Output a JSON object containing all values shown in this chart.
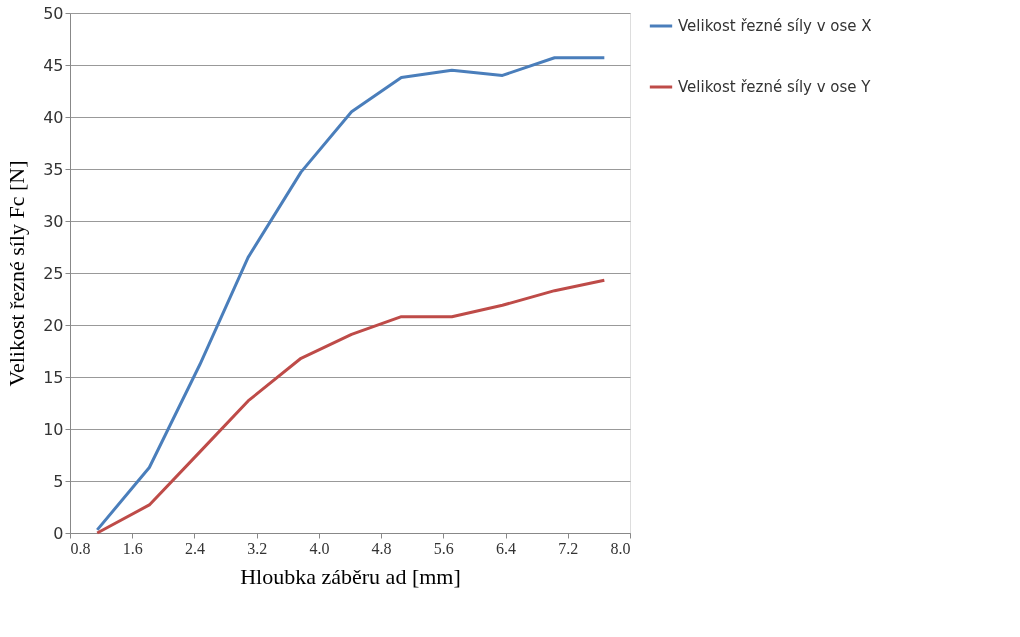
{
  "chart_data": {
    "type": "line",
    "xlabel": "Hloubka záběru ad [mm]",
    "ylabel": "Velikost řezné síly Fc [N]",
    "x": [
      1.15,
      1.82,
      2.47,
      3.09,
      3.77,
      4.42,
      5.06,
      5.71,
      6.36,
      7.03,
      7.67
    ],
    "series": [
      {
        "name": "Velikost řezné síly v ose X",
        "color": "#4a7ebb",
        "values": [
          0.3,
          6.3,
          16.2,
          26.5,
          34.7,
          40.5,
          43.8,
          44.5,
          44.0,
          45.7,
          45.7
        ]
      },
      {
        "name": "Velikost řezné síly v ose Y",
        "color": "#be4b48",
        "values": [
          0,
          2.7,
          7.8,
          12.7,
          16.8,
          19.1,
          20.8,
          20.8,
          21.9,
          23.3,
          24.3
        ]
      }
    ],
    "xlim": [
      0.8,
      8.0
    ],
    "xticks": [
      {
        "value": 0.8,
        "label": "0.8"
      },
      {
        "value": 1.6,
        "label": "1.6"
      },
      {
        "value": 2.4,
        "label": "2.4"
      },
      {
        "value": 3.2,
        "label": "3.2"
      },
      {
        "value": 4.0,
        "label": "4.0"
      },
      {
        "value": 4.8,
        "label": "4.8"
      },
      {
        "value": 5.6,
        "label": "5.6"
      },
      {
        "value": 6.4,
        "label": "6.4"
      },
      {
        "value": 7.2,
        "label": "7.2"
      },
      {
        "value": 8.0,
        "label": "8.0"
      }
    ],
    "ylim": [
      0,
      50
    ],
    "yticks": [
      0,
      5,
      10,
      15,
      20,
      25,
      30,
      35,
      40,
      45,
      50
    ],
    "grid": "y",
    "legend": "right",
    "marker": "none",
    "line_style": "solid"
  }
}
